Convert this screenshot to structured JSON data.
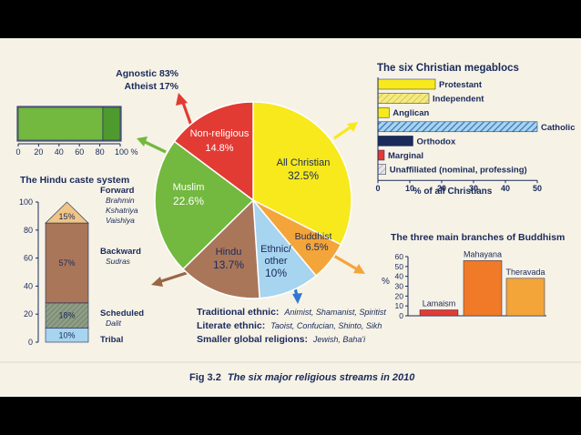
{
  "caption": {
    "fig": "Fig 3.2",
    "text": "The six major religious streams in 2010"
  },
  "colors": {
    "christian": "#f7e91c",
    "buddhist": "#f3a53a",
    "ethnic": "#a7d4ef",
    "hindu": "#a9765a",
    "muslim": "#73b83f",
    "nonreligious": "#e23b34",
    "navy": "#1a2a5a",
    "hatch": "#3d74b5"
  },
  "chart_data": [
    {
      "id": "pie",
      "type": "pie",
      "title": "",
      "slices": [
        {
          "name": "All Christian",
          "value": 32.5,
          "label": "32.5%",
          "color": "#f7e91c"
        },
        {
          "name": "Buddhist",
          "value": 6.5,
          "label": "6.5%",
          "color": "#f3a53a"
        },
        {
          "name": "Ethnic/ other",
          "value": 10,
          "label": "10%",
          "color": "#a7d4ef"
        },
        {
          "name": "Hindu",
          "value": 13.7,
          "label": "13.7%",
          "color": "#a9765a"
        },
        {
          "name": "Muslim",
          "value": 22.6,
          "label": "22.6%",
          "color": "#73b83f"
        },
        {
          "name": "Non-religious",
          "value": 14.8,
          "label": "14.8%",
          "color": "#e23b34"
        }
      ]
    },
    {
      "id": "nonreligious",
      "type": "bar",
      "orientation": "horizontal-stacked",
      "series": [
        {
          "name": "Agnostic",
          "value": 83,
          "label": "Agnostic 83%",
          "color": "#73b83f"
        },
        {
          "name": "Atheist",
          "value": 17,
          "label": "Atheist 17%",
          "color": "#4f9a2e"
        }
      ],
      "xlim": [
        0,
        100
      ],
      "xticks": [
        "0",
        "20",
        "40",
        "60",
        "80",
        "100 %"
      ]
    },
    {
      "id": "christian",
      "type": "bar",
      "orientation": "horizontal",
      "title": "The six Christian megablocs",
      "xlabel": "% of all Christians",
      "xlim": [
        0,
        50
      ],
      "xticks": [
        "0",
        "10",
        "20",
        "30",
        "40",
        "50"
      ],
      "categories": [
        "Protestant",
        "Independent",
        "Anglican",
        "Catholic",
        "Orthodox",
        "Marginal",
        "Unaffiliated (nominal, professing)"
      ],
      "values": [
        18,
        16,
        3.5,
        50,
        11,
        2,
        2.5
      ]
    },
    {
      "id": "hindu",
      "type": "bar",
      "orientation": "vertical-stacked",
      "title": "The Hindu caste system",
      "ylim": [
        0,
        100
      ],
      "yticks": [
        "0",
        "20",
        "40",
        "60",
        "80",
        "100"
      ],
      "segments": [
        {
          "value": 10,
          "label": "10%",
          "name": "Tribal",
          "subs": []
        },
        {
          "value": 18,
          "label": "18%",
          "name": "Scheduled",
          "subs": [
            "Dalit"
          ]
        },
        {
          "value": 57,
          "label": "57%",
          "name": "Backward",
          "subs": [
            "Sudras"
          ]
        },
        {
          "value": 15,
          "label": "15%",
          "name": "Forward",
          "subs": [
            "Brahmin",
            "Kshatriya",
            "Vaishiya"
          ]
        }
      ]
    },
    {
      "id": "buddhism",
      "type": "bar",
      "title": "The three main branches of Buddhism",
      "ylabel": "%",
      "ylim": [
        0,
        60
      ],
      "yticks": [
        "0",
        "10",
        "20",
        "30",
        "40",
        "50",
        "60"
      ],
      "categories": [
        "Lamaism",
        "Mahayana",
        "Theravada"
      ],
      "values": [
        6,
        56,
        38
      ]
    }
  ],
  "ethnic_notes": [
    {
      "label": "Traditional ethnic:",
      "items": "Animist, Shamanist, Spiritist"
    },
    {
      "label": "Literate ethnic:",
      "items": "Taoist, Confucian, Shinto, Sikh"
    },
    {
      "label": "Smaller global religions:",
      "items": "Jewish, Baha'i"
    }
  ]
}
